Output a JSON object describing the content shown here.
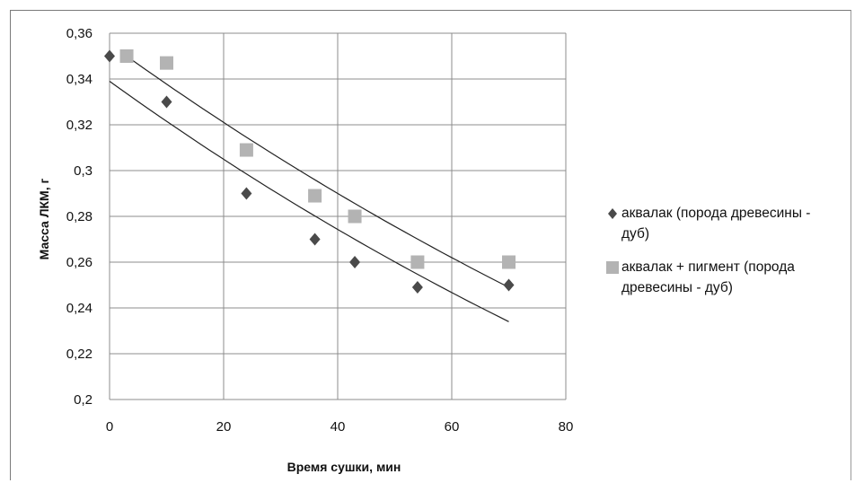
{
  "chart_data": {
    "type": "scatter",
    "title": "",
    "xlabel": "Время сушки, мин",
    "ylabel": "Масса ЛКМ, г",
    "xlim": [
      0,
      80
    ],
    "ylim": [
      0.2,
      0.36
    ],
    "x_ticks": [
      0,
      20,
      40,
      60,
      80
    ],
    "x_tick_labels": [
      "0",
      "20",
      "40",
      "60",
      "80"
    ],
    "y_ticks": [
      0.2,
      0.22,
      0.24,
      0.26,
      0.28,
      0.3,
      0.32,
      0.34,
      0.36
    ],
    "y_tick_labels": [
      "0,2",
      "0,22",
      "0,24",
      "0,26",
      "0,28",
      "0,3",
      "0,32",
      "0,34",
      "0,36"
    ],
    "grid": true,
    "legend_position": "right",
    "series": [
      {
        "name": "аквалак (порода древесины - дуб)",
        "marker": "diamond",
        "color": "#4a4a4a",
        "x": [
          0,
          10,
          24,
          36,
          43,
          54,
          70
        ],
        "y": [
          0.35,
          0.33,
          0.29,
          0.27,
          0.26,
          0.249,
          0.25
        ],
        "trendline": {
          "x": [
            0,
            70
          ],
          "y": [
            0.339,
            0.234
          ]
        }
      },
      {
        "name": "аквалак + пигмент (порода древесины - дуб)",
        "marker": "square",
        "color": "#b3b3b3",
        "x": [
          3,
          10,
          24,
          36,
          43,
          54,
          70
        ],
        "y": [
          0.35,
          0.347,
          0.309,
          0.289,
          0.28,
          0.26,
          0.26
        ],
        "trendline": {
          "x": [
            3,
            70
          ],
          "y": [
            0.35,
            0.249
          ]
        }
      }
    ],
    "legend": {
      "series0_lines": [
        "аквалак (порода древесины -",
        "дуб)"
      ],
      "series1_lines": [
        "аквалак + пигмент (порода",
        "древесины - дуб)"
      ]
    }
  }
}
